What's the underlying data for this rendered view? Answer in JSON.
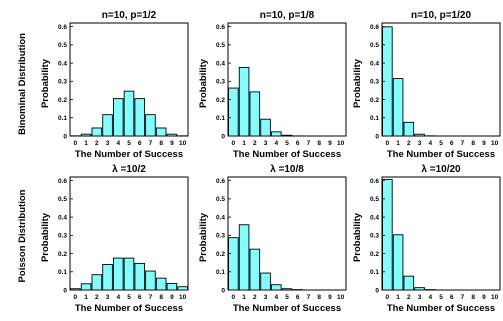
{
  "row_labels": [
    "Binominal Distribution",
    "Poisson Distribution"
  ],
  "bar_color": "#7fffff",
  "chart_data": [
    {
      "type": "bar",
      "title": "n=10, p=1/2",
      "xlabel": "The Number of Success",
      "ylabel": "Probability",
      "categories": [
        "0",
        "1",
        "2",
        "3",
        "4",
        "5",
        "6",
        "7",
        "8",
        "9",
        "10"
      ],
      "values": [
        0.001,
        0.01,
        0.044,
        0.117,
        0.205,
        0.246,
        0.205,
        0.117,
        0.044,
        0.01,
        0.001
      ],
      "yticks": [
        "0",
        "0.1",
        "0.2",
        "0.3",
        "0.4",
        "0.5",
        "0.6"
      ],
      "ylim": [
        0,
        0.62
      ]
    },
    {
      "type": "bar",
      "title": "n=10, p=1/8",
      "xlabel": "The Number of Success",
      "ylabel": "Probability",
      "categories": [
        "0",
        "1",
        "2",
        "3",
        "4",
        "5",
        "6",
        "7",
        "8",
        "9",
        "10"
      ],
      "values": [
        0.263,
        0.376,
        0.242,
        0.092,
        0.023,
        0.004,
        0.0005,
        0,
        0,
        0,
        0
      ],
      "yticks": [
        "0",
        "0.1",
        "0.2",
        "0.3",
        "0.4",
        "0.5",
        "0.6"
      ],
      "ylim": [
        0,
        0.62
      ]
    },
    {
      "type": "bar",
      "title": "n=10, p=1/20",
      "xlabel": "The Number of Success",
      "ylabel": "Probability",
      "categories": [
        "0",
        "1",
        "2",
        "3",
        "4",
        "5",
        "6",
        "7",
        "8",
        "9",
        "10"
      ],
      "values": [
        0.599,
        0.315,
        0.075,
        0.01,
        0.001,
        0,
        0,
        0,
        0,
        0,
        0
      ],
      "yticks": [
        "0",
        "0.1",
        "0.2",
        "0.3",
        "0.4",
        "0.5",
        "0.6"
      ],
      "ylim": [
        0,
        0.62
      ]
    },
    {
      "type": "bar",
      "title": "λ =10/2",
      "xlabel": "The Number of Success",
      "ylabel": "Probability",
      "categories": [
        "0",
        "1",
        "2",
        "3",
        "4",
        "5",
        "6",
        "7",
        "8",
        "9",
        "10"
      ],
      "values": [
        0.007,
        0.034,
        0.084,
        0.14,
        0.175,
        0.175,
        0.146,
        0.104,
        0.065,
        0.036,
        0.018
      ],
      "yticks": [
        "0",
        "0.1",
        "0.2",
        "0.3",
        "0.4",
        "0.5",
        "0.6"
      ],
      "ylim": [
        0,
        0.62
      ]
    },
    {
      "type": "bar",
      "title": "λ =10/8",
      "xlabel": "The Number of Success",
      "ylabel": "Probability",
      "categories": [
        "0",
        "1",
        "2",
        "3",
        "4",
        "5",
        "6",
        "7",
        "8",
        "9",
        "10"
      ],
      "values": [
        0.287,
        0.358,
        0.224,
        0.093,
        0.029,
        0.007,
        0.002,
        0,
        0,
        0,
        0
      ],
      "yticks": [
        "0",
        "0.1",
        "0.2",
        "0.3",
        "0.4",
        "0.5",
        "0.6"
      ],
      "ylim": [
        0,
        0.62
      ]
    },
    {
      "type": "bar",
      "title": "λ =10/20",
      "xlabel": "The Number of Success",
      "ylabel": "Probability",
      "categories": [
        "0",
        "1",
        "2",
        "3",
        "4",
        "5",
        "6",
        "7",
        "8",
        "9",
        "10"
      ],
      "values": [
        0.607,
        0.303,
        0.076,
        0.013,
        0.002,
        0,
        0,
        0,
        0,
        0,
        0
      ],
      "yticks": [
        "0",
        "0.1",
        "0.2",
        "0.3",
        "0.4",
        "0.5",
        "0.6"
      ],
      "ylim": [
        0,
        0.62
      ]
    }
  ]
}
